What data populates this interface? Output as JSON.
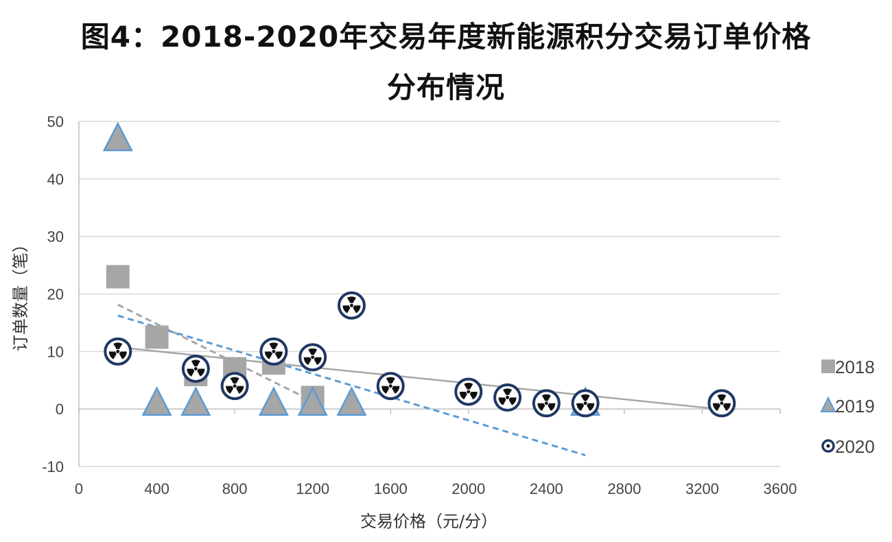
{
  "chart_data": {
    "type": "scatter",
    "title": "图4：2018-2020年交易年度新能源积分交易订单价格",
    "title_line2": "分布情况",
    "xlabel": "交易价格（元/分）",
    "ylabel": "订单数量（笔）",
    "xlim": [
      0,
      3600
    ],
    "ylim": [
      -10,
      50
    ],
    "x_ticks": [
      0,
      400,
      800,
      1200,
      1600,
      2000,
      2400,
      2800,
      3200,
      3600
    ],
    "y_ticks": [
      -10,
      0,
      10,
      20,
      30,
      40,
      50
    ],
    "grid": "horizontal",
    "legend_position": "right",
    "trendlines": "linear",
    "series": [
      {
        "name": "2018",
        "marker": "square",
        "color": "#a6a6a6",
        "trend_color": "#a6a6a6",
        "points": [
          [
            200,
            23
          ],
          [
            400,
            12.5
          ],
          [
            600,
            6
          ],
          [
            800,
            7
          ],
          [
            1000,
            8
          ],
          [
            1200,
            2
          ]
        ]
      },
      {
        "name": "2019",
        "marker": "triangle",
        "color": "#a6a6a6",
        "edge_color": "#5b9bd5",
        "trend_color": "#5b9bd5",
        "points": [
          [
            200,
            47
          ],
          [
            400,
            1
          ],
          [
            600,
            1
          ],
          [
            1000,
            1
          ],
          [
            1200,
            1
          ],
          [
            1400,
            1
          ],
          [
            2600,
            1
          ]
        ]
      },
      {
        "name": "2020",
        "marker": "radiation",
        "color": "#1f3864",
        "trend_color": "#a6a6a6",
        "points": [
          [
            200,
            10
          ],
          [
            600,
            7
          ],
          [
            800,
            4
          ],
          [
            1000,
            10
          ],
          [
            1200,
            9
          ],
          [
            1400,
            18
          ],
          [
            1600,
            4
          ],
          [
            2000,
            3
          ],
          [
            2200,
            2
          ],
          [
            2400,
            1
          ],
          [
            2600,
            1
          ],
          [
            3300,
            1
          ]
        ]
      }
    ]
  }
}
